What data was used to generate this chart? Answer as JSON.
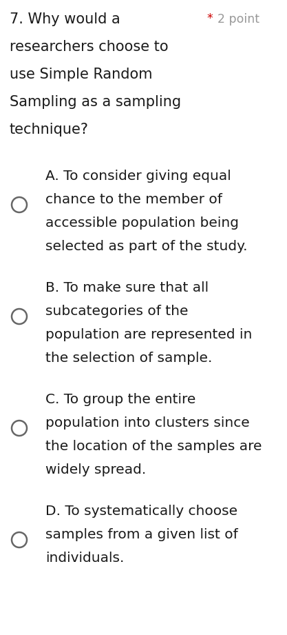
{
  "bg_color": "#ffffff",
  "question_line1": "7. Why would a",
  "question_lines": [
    "7. Why would a",
    "researchers choose to",
    "use Simple Random",
    "Sampling as a sampling",
    "technique?"
  ],
  "points_star": "*",
  "points_text": "2 point",
  "star_color": "#cc0000",
  "points_color": "#999999",
  "question_color": "#1a1a1a",
  "option_color": "#1a1a1a",
  "option_lines_list": [
    [
      "A. To consider giving equal",
      "chance to the member of",
      "accessible population being",
      "selected as part of the study."
    ],
    [
      "B. To make sure that all",
      "subcategories of the",
      "population are represented in",
      "the selection of sample."
    ],
    [
      "C. To group the entire",
      "population into clusters since",
      "the location of the samples are",
      "widely spread."
    ],
    [
      "D. To systematically choose",
      "samples from a given list of",
      "individuals."
    ]
  ],
  "circle_color": "#666666",
  "fig_width": 4.17,
  "fig_height": 9.21,
  "dpi": 100,
  "q_fontsize": 15.0,
  "opt_fontsize": 14.5,
  "pt_fontsize": 12.5
}
